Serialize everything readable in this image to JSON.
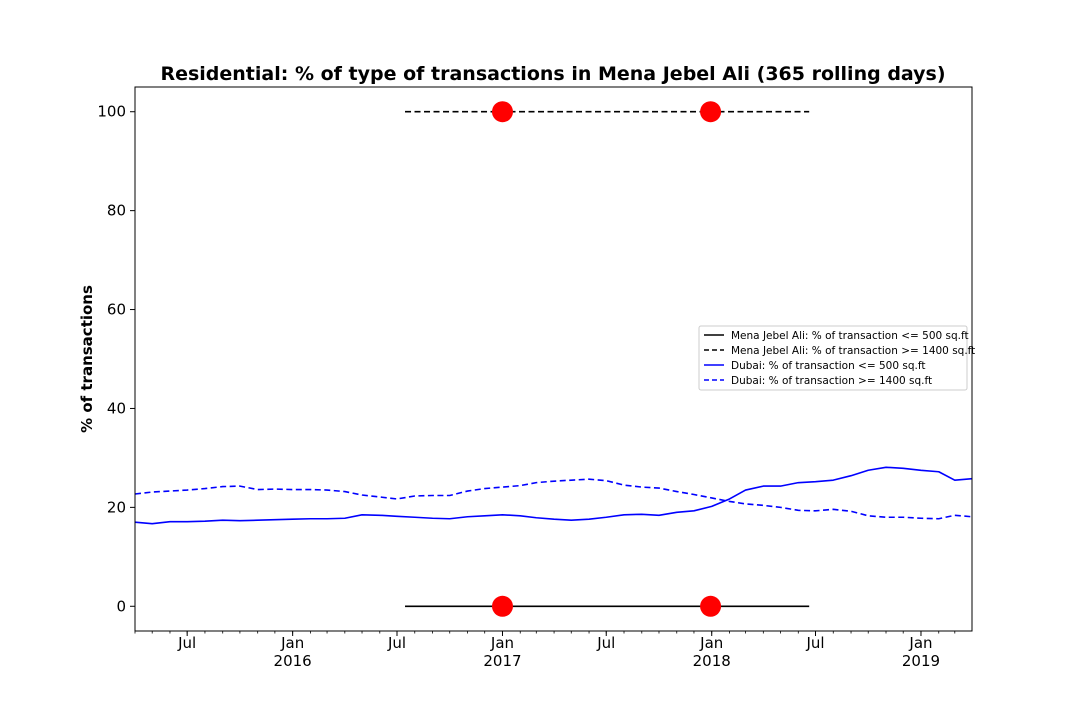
{
  "chart_data": {
    "type": "line",
    "title": "Residential: % of type of transactions in Mena Jebel Ali (365 rolling days)",
    "xlabel": "",
    "ylabel": "% of transactions",
    "xlim": [
      "2015-04-01",
      "2019-03-31"
    ],
    "ylim": [
      -5,
      105
    ],
    "yticks": [
      0,
      20,
      40,
      60,
      80,
      100
    ],
    "xticks": [
      {
        "date": "2015-07-01",
        "label": "Jul",
        "year": ""
      },
      {
        "date": "2016-01-01",
        "label": "Jan",
        "year": "2016"
      },
      {
        "date": "2016-07-01",
        "label": "Jul",
        "year": ""
      },
      {
        "date": "2017-01-01",
        "label": "Jan",
        "year": "2017"
      },
      {
        "date": "2017-07-01",
        "label": "Jul",
        "year": ""
      },
      {
        "date": "2018-01-01",
        "label": "Jan",
        "year": "2018"
      },
      {
        "date": "2018-07-01",
        "label": "Jul",
        "year": ""
      },
      {
        "date": "2019-01-01",
        "label": "Jan",
        "year": "2019"
      }
    ],
    "grid": false,
    "legend_position": "center-right",
    "series": [
      {
        "name": "Mena Jebel Ali: % of transaction <= 500 sq.ft",
        "color": "#000000",
        "style": "solid",
        "x": [
          "2016-07-15",
          "2018-06-20"
        ],
        "y": [
          0,
          0
        ]
      },
      {
        "name": "Mena Jebel Ali: % of transaction >= 1400 sq.ft",
        "color": "#000000",
        "style": "dashed",
        "x": [
          "2016-07-15",
          "2018-06-20"
        ],
        "y": [
          100,
          100
        ]
      },
      {
        "name": "Dubai: % of transaction <= 500 sq.ft",
        "color": "#0000ff",
        "style": "solid",
        "x": [
          "2015-04-01",
          "2015-05-01",
          "2015-06-01",
          "2015-07-01",
          "2015-08-01",
          "2015-09-01",
          "2015-10-01",
          "2015-11-01",
          "2015-12-01",
          "2016-01-01",
          "2016-02-01",
          "2016-03-01",
          "2016-04-01",
          "2016-05-01",
          "2016-06-01",
          "2016-07-01",
          "2016-08-01",
          "2016-09-01",
          "2016-10-01",
          "2016-11-01",
          "2016-12-01",
          "2017-01-01",
          "2017-02-01",
          "2017-03-01",
          "2017-04-01",
          "2017-05-01",
          "2017-06-01",
          "2017-07-01",
          "2017-08-01",
          "2017-09-01",
          "2017-10-01",
          "2017-11-01",
          "2017-12-01",
          "2018-01-01",
          "2018-02-01",
          "2018-03-01",
          "2018-04-01",
          "2018-05-01",
          "2018-06-01",
          "2018-07-01",
          "2018-08-01",
          "2018-09-01",
          "2018-10-01",
          "2018-11-01",
          "2018-12-01",
          "2019-01-01",
          "2019-02-01",
          "2019-03-01",
          "2019-03-31"
        ],
        "y": [
          17.0,
          16.7,
          17.1,
          17.1,
          17.2,
          17.4,
          17.3,
          17.4,
          17.5,
          17.6,
          17.7,
          17.7,
          17.8,
          18.5,
          18.4,
          18.2,
          18.0,
          17.8,
          17.7,
          18.1,
          18.3,
          18.5,
          18.3,
          17.9,
          17.6,
          17.4,
          17.6,
          18.0,
          18.5,
          18.6,
          18.4,
          19.0,
          19.3,
          20.2,
          21.7,
          23.5,
          24.3,
          24.3,
          25.0,
          25.2,
          25.5,
          26.4,
          27.5,
          28.1,
          27.9,
          27.5,
          27.2,
          25.5,
          25.8
        ]
      },
      {
        "name": "Dubai: % of transaction >= 1400 sq.ft",
        "color": "#0000ff",
        "style": "dashed",
        "x": [
          "2015-04-01",
          "2015-05-01",
          "2015-06-01",
          "2015-07-01",
          "2015-08-01",
          "2015-09-01",
          "2015-10-01",
          "2015-11-01",
          "2015-12-01",
          "2016-01-01",
          "2016-02-01",
          "2016-03-01",
          "2016-04-01",
          "2016-05-01",
          "2016-06-01",
          "2016-07-01",
          "2016-08-01",
          "2016-09-01",
          "2016-10-01",
          "2016-11-01",
          "2016-12-01",
          "2017-01-01",
          "2017-02-01",
          "2017-03-01",
          "2017-04-01",
          "2017-05-01",
          "2017-06-01",
          "2017-07-01",
          "2017-08-01",
          "2017-09-01",
          "2017-10-01",
          "2017-11-01",
          "2017-12-01",
          "2018-01-01",
          "2018-02-01",
          "2018-03-01",
          "2018-04-01",
          "2018-05-01",
          "2018-06-01",
          "2018-07-01",
          "2018-08-01",
          "2018-09-01",
          "2018-10-01",
          "2018-11-01",
          "2018-12-01",
          "2019-01-01",
          "2019-02-01",
          "2019-03-01",
          "2019-03-31"
        ],
        "y": [
          22.7,
          23.1,
          23.3,
          23.5,
          23.8,
          24.2,
          24.3,
          23.6,
          23.7,
          23.6,
          23.6,
          23.5,
          23.2,
          22.5,
          22.1,
          21.7,
          22.3,
          22.4,
          22.4,
          23.3,
          23.8,
          24.1,
          24.4,
          25.0,
          25.3,
          25.5,
          25.7,
          25.4,
          24.5,
          24.1,
          23.9,
          23.2,
          22.6,
          21.9,
          21.2,
          20.7,
          20.4,
          20.0,
          19.4,
          19.3,
          19.6,
          19.2,
          18.3,
          18.0,
          18.0,
          17.8,
          17.7,
          18.4,
          18.1
        ]
      }
    ],
    "markers": [
      {
        "x": "2017-01-01",
        "y": 100,
        "color": "#ff0000"
      },
      {
        "x": "2017-12-30",
        "y": 100,
        "color": "#ff0000"
      },
      {
        "x": "2017-01-01",
        "y": 0,
        "color": "#ff0000"
      },
      {
        "x": "2017-12-30",
        "y": 0,
        "color": "#ff0000"
      }
    ]
  }
}
